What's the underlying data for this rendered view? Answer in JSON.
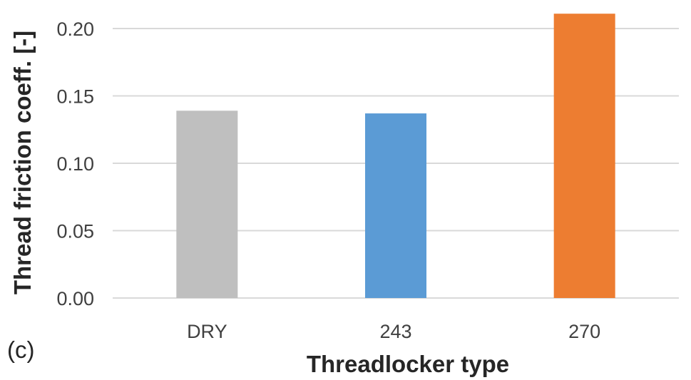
{
  "panel_label": "(c)",
  "chart_data": {
    "type": "bar",
    "categories": [
      "DRY",
      "243",
      "270"
    ],
    "values": [
      0.139,
      0.137,
      0.211
    ],
    "colors": [
      "#bfbfbf",
      "#5b9bd5",
      "#ed7d31"
    ],
    "xlabel": "Threadlocker type",
    "ylabel": "Thread friction coeff. [-]",
    "ylim": [
      0,
      0.2
    ],
    "yticks": [
      "0.00",
      "0.05",
      "0.10",
      "0.15",
      "0.20"
    ],
    "grid": true,
    "gridline_color": "#d9d9d9",
    "legend": "none"
  }
}
